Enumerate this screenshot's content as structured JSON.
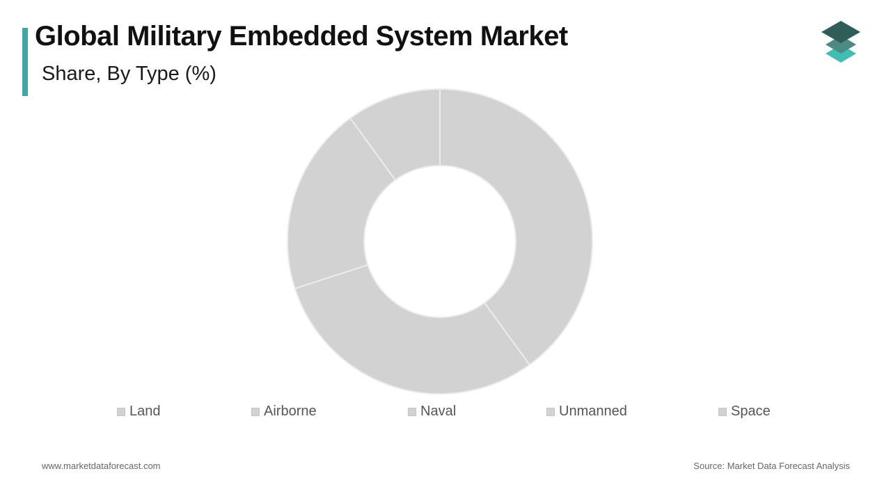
{
  "header": {
    "title": "Global Military Embedded System Market",
    "subtitle": "Share, By Type (%)"
  },
  "logo": {
    "icon": "stacked-layers-icon"
  },
  "colors": {
    "accent": "#3fa7a5",
    "slice_fill": "#d3d2d3",
    "slice_stroke": "#ececec",
    "logo_dark": "#2f5e59",
    "logo_mid": "#4c8a83",
    "logo_light": "#3fbfb3"
  },
  "chart_data": {
    "type": "pie",
    "donut": true,
    "title": "Global Military Embedded System Market",
    "subtitle": "Share, By Type (%)",
    "categories": [
      "Land",
      "Airborne",
      "Naval",
      "Unmanned",
      "Space"
    ],
    "values": [
      40,
      30,
      20,
      10,
      0
    ],
    "legend_position": "bottom"
  },
  "footer": {
    "website": "www.marketdataforecast.com",
    "source": "Source: Market Data Forecast Analysis"
  }
}
